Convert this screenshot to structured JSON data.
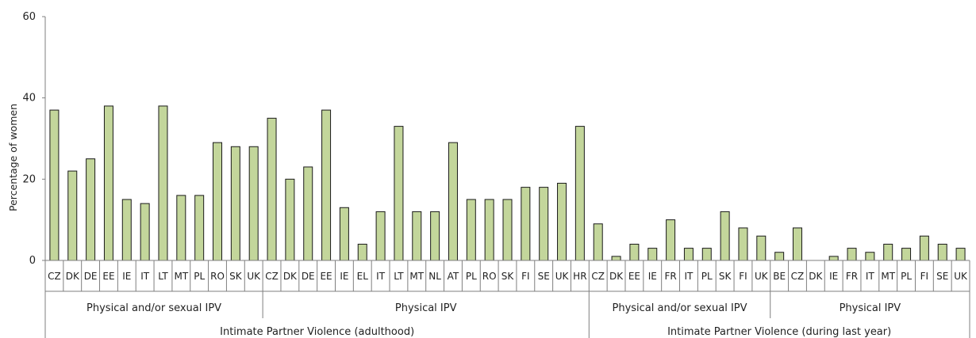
{
  "chart_data": {
    "type": "bar",
    "ylabel": "Percentage of women",
    "ylim": [
      0,
      60
    ],
    "yticks": [
      0,
      20,
      40,
      60
    ],
    "grid": false,
    "colors": {
      "bar_fill": "#c3d69b",
      "bar_stroke": "#1a1a1a",
      "axis": "#7f7f7f"
    },
    "categories": [
      "CZ",
      "DK",
      "DE",
      "EE",
      "IE",
      "IT",
      "LT",
      "MT",
      "PL",
      "RO",
      "SK",
      "UK",
      "CZ",
      "DK",
      "DE",
      "EE",
      "IE",
      "EL",
      "IT",
      "LT",
      "MT",
      "NL",
      "AT",
      "PL",
      "RO",
      "SK",
      "FI",
      "SE",
      "UK",
      "HR",
      "CZ",
      "DK",
      "EE",
      "IE",
      "FR",
      "IT",
      "PL",
      "SK",
      "FI",
      "UK",
      "BE",
      "CZ",
      "DK",
      "IE",
      "FR",
      "IT",
      "MT",
      "PL",
      "FI",
      "SE",
      "UK"
    ],
    "values": [
      37,
      22,
      25,
      38,
      15,
      14,
      38,
      16,
      16,
      29,
      28,
      28,
      35,
      20,
      23,
      37,
      13,
      4,
      12,
      33,
      12,
      12,
      29,
      15,
      15,
      15,
      18,
      18,
      19,
      33,
      9,
      1,
      4,
      3,
      10,
      3,
      3,
      12,
      8,
      6,
      2,
      8,
      0,
      1,
      3,
      2,
      4,
      3,
      6,
      4,
      3
    ],
    "groups": [
      {
        "label": "Physical and/or sexual IPV",
        "start": 0,
        "end": 11
      },
      {
        "label": "Physical IPV",
        "start": 12,
        "end": 29
      },
      {
        "label": "Physical and/or sexual IPV",
        "start": 30,
        "end": 39
      },
      {
        "label": "Physical IPV",
        "start": 40,
        "end": 50
      }
    ],
    "supergroups": [
      {
        "label": "Intimate Partner Violence (adulthood)",
        "start": 0,
        "end": 29
      },
      {
        "label": "Intimate Partner Violence (during last year)",
        "start": 30,
        "end": 50
      }
    ]
  }
}
